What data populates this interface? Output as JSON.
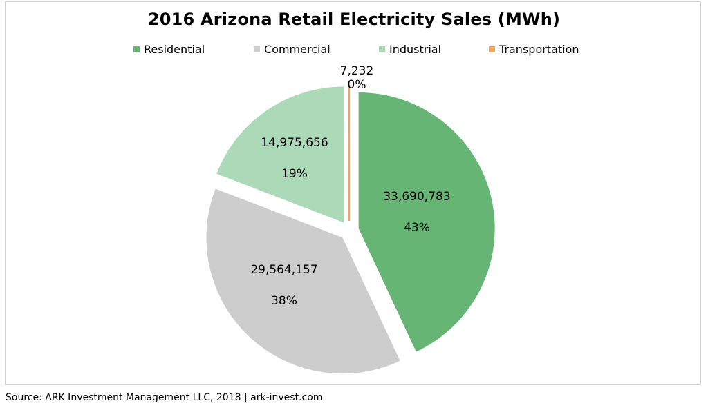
{
  "chart_data": {
    "type": "pie",
    "title": "2016 Arizona Retail Electricity Sales (MWh)",
    "legend_position": "top",
    "slices": [
      {
        "name": "Residential",
        "value": 33690783,
        "value_label": "33,690,783",
        "pct_label": "43%",
        "color": "#66b574"
      },
      {
        "name": "Commercial",
        "value": 29564157,
        "value_label": "29,564,157",
        "pct_label": "38%",
        "color": "#cdcdcd"
      },
      {
        "name": "Industrial",
        "value": 14975656,
        "value_label": "14,975,656",
        "pct_label": "19%",
        "color": "#acd9b8"
      },
      {
        "name": "Transportation",
        "value": 7232,
        "value_label": "7,232",
        "pct_label": "0%",
        "color": "#f2a35c"
      }
    ]
  },
  "footer": {
    "source": "Source: ARK Investment Management LLC, 2018 | ark-invest.com"
  }
}
